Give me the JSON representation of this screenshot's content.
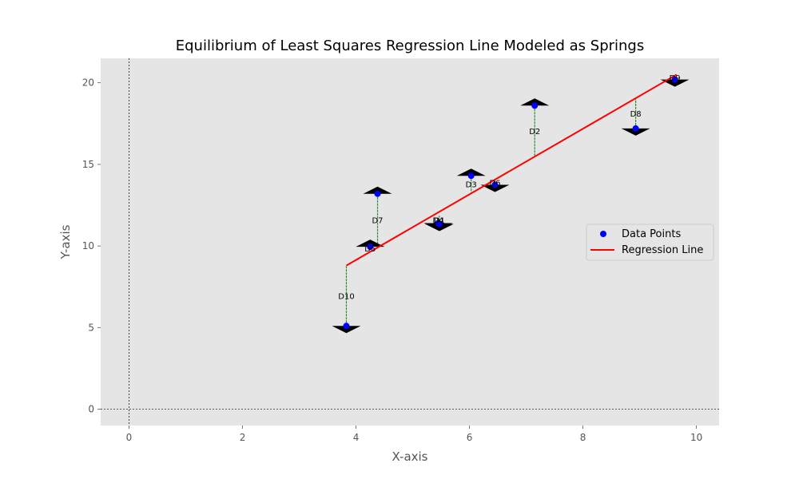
{
  "chart_data": {
    "type": "scatter",
    "title": "Equilibrium of Least Squares Regression Line Modeled as Springs",
    "xlabel": "X-axis",
    "ylabel": "Y-axis",
    "xlim": [
      -0.5,
      10.4
    ],
    "ylim": [
      -1,
      21.5
    ],
    "xticks": [
      0,
      2,
      4,
      6,
      8,
      10
    ],
    "yticks": [
      0,
      5,
      10,
      15,
      20
    ],
    "grid": false,
    "reference_lines": {
      "x": 0,
      "y": 0
    },
    "legend": {
      "position": "center-right",
      "entries": [
        "Data Points",
        "Regression Line"
      ]
    },
    "regression_line": {
      "x": [
        3.83,
        9.65
      ],
      "y": [
        8.8,
        20.5
      ]
    },
    "points": [
      {
        "label": "D1",
        "x": 5.47,
        "y": 11.35,
        "fit": 11.85
      },
      {
        "label": "D2",
        "x": 7.15,
        "y": 18.6,
        "fit": 15.5
      },
      {
        "label": "D3",
        "x": 6.03,
        "y": 14.3,
        "fit": 13.3
      },
      {
        "label": "D4",
        "x": 5.45,
        "y": 11.4,
        "fit": 11.8
      },
      {
        "label": "D5",
        "x": 4.25,
        "y": 9.95,
        "fit": 9.75
      },
      {
        "label": "D6",
        "x": 6.45,
        "y": 13.75,
        "fit": 14.05
      },
      {
        "label": "D7",
        "x": 4.38,
        "y": 13.2,
        "fit": 10.0
      },
      {
        "label": "D8",
        "x": 8.93,
        "y": 17.2,
        "fit": 19.05
      },
      {
        "label": "D9",
        "x": 9.62,
        "y": 20.2,
        "fit": 20.45
      },
      {
        "label": "D10",
        "x": 3.83,
        "y": 5.1,
        "fit": 8.8
      }
    ],
    "colors": {
      "background": "#e5e5e5",
      "points": "#0000ff",
      "line": "#ff0000",
      "spring": "#2e8b2e",
      "marker": "#000000"
    }
  }
}
